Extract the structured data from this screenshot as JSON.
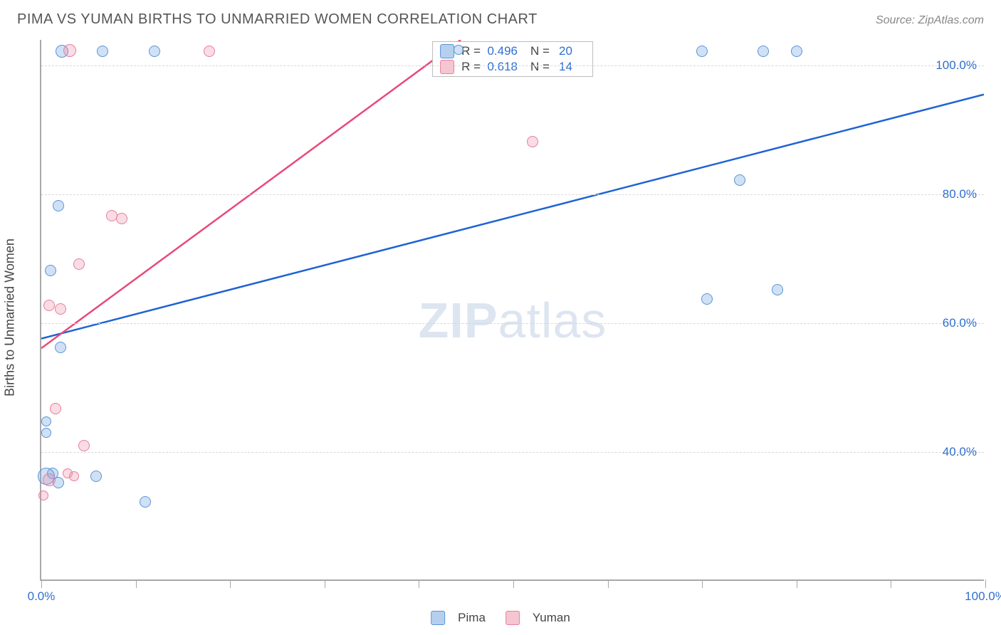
{
  "header": {
    "title": "PIMA VS YUMAN BIRTHS TO UNMARRIED WOMEN CORRELATION CHART",
    "source": "Source: ZipAtlas.com"
  },
  "watermark": {
    "bold": "ZIP",
    "light": "atlas"
  },
  "chart": {
    "type": "scatter",
    "background_color": "#ffffff",
    "grid_color": "#d8d8d8",
    "axis_color": "#a8a8a8",
    "tick_label_color": "#2f6fd0",
    "axis_label_color": "#444444",
    "y_label": "Births to Unmarried Women",
    "y_label_fontsize": 18,
    "xlim": [
      0,
      100
    ],
    "ylim": [
      20,
      104
    ],
    "x_ticks": [
      0,
      10,
      20,
      30,
      40,
      50,
      60,
      70,
      80,
      90,
      100
    ],
    "x_tick_labels": {
      "0": "0.0%",
      "100": "100.0%"
    },
    "y_gridlines": [
      40,
      60,
      80,
      100
    ],
    "y_tick_labels": {
      "40": "40.0%",
      "60": "60.0%",
      "80": "80.0%",
      "100": "100.0%"
    },
    "series": [
      {
        "name": "Pima",
        "fill_color": "rgba(120,170,225,0.35)",
        "stroke_color": "#5a94d6",
        "trend_color": "#1e63d4",
        "trend_width": 2.5,
        "marker_radius": 8,
        "r_value": "0.496",
        "n_value": "20",
        "trend_line": {
          "x1": 0,
          "y1": 57.5,
          "x2": 100,
          "y2": 95.5
        },
        "points": [
          {
            "x": 2.2,
            "y": 102.0,
            "r": 9
          },
          {
            "x": 6.5,
            "y": 102.0,
            "r": 8
          },
          {
            "x": 12.0,
            "y": 102.0,
            "r": 8
          },
          {
            "x": 70.0,
            "y": 102.0,
            "r": 8
          },
          {
            "x": 76.5,
            "y": 102.0,
            "r": 8
          },
          {
            "x": 80.0,
            "y": 102.0,
            "r": 8
          },
          {
            "x": 74.0,
            "y": 82.0,
            "r": 8
          },
          {
            "x": 1.8,
            "y": 78.0,
            "r": 8
          },
          {
            "x": 1.0,
            "y": 68.0,
            "r": 8
          },
          {
            "x": 70.5,
            "y": 63.5,
            "r": 8
          },
          {
            "x": 78.0,
            "y": 65.0,
            "r": 8
          },
          {
            "x": 2.0,
            "y": 56.0,
            "r": 8
          },
          {
            "x": 0.5,
            "y": 44.5,
            "r": 7
          },
          {
            "x": 0.5,
            "y": 42.8,
            "r": 7
          },
          {
            "x": 1.2,
            "y": 36.5,
            "r": 8
          },
          {
            "x": 0.5,
            "y": 36.0,
            "r": 12
          },
          {
            "x": 1.8,
            "y": 35.0,
            "r": 8
          },
          {
            "x": 5.8,
            "y": 36.0,
            "r": 8
          },
          {
            "x": 11.0,
            "y": 32.0,
            "r": 8
          },
          {
            "x": 44.2,
            "y": 102.2,
            "r": 7
          }
        ]
      },
      {
        "name": "Yuman",
        "fill_color": "rgba(235,140,165,0.30)",
        "stroke_color": "#e57f9f",
        "trend_color": "#e84a7a",
        "trend_width": 2.5,
        "marker_radius": 8,
        "r_value": "0.618",
        "n_value": "14",
        "trend_line": {
          "x1": 0,
          "y1": 56.0,
          "x2": 44.5,
          "y2": 104.0
        },
        "points": [
          {
            "x": 3.0,
            "y": 102.1,
            "r": 9
          },
          {
            "x": 17.8,
            "y": 102.0,
            "r": 8
          },
          {
            "x": 52.0,
            "y": 88.0,
            "r": 8
          },
          {
            "x": 7.5,
            "y": 76.5,
            "r": 8
          },
          {
            "x": 8.5,
            "y": 76.0,
            "r": 8
          },
          {
            "x": 4.0,
            "y": 69.0,
            "r": 8
          },
          {
            "x": 0.8,
            "y": 62.5,
            "r": 8
          },
          {
            "x": 2.0,
            "y": 62.0,
            "r": 8
          },
          {
            "x": 1.5,
            "y": 46.5,
            "r": 8
          },
          {
            "x": 4.5,
            "y": 40.8,
            "r": 8
          },
          {
            "x": 0.8,
            "y": 35.5,
            "r": 9
          },
          {
            "x": 2.8,
            "y": 36.5,
            "r": 7
          },
          {
            "x": 3.5,
            "y": 36.0,
            "r": 7
          },
          {
            "x": 0.2,
            "y": 33.0,
            "r": 7
          }
        ]
      }
    ],
    "stats_box": {
      "rows": [
        {
          "swatch_fill": "rgba(120,170,225,0.55)",
          "swatch_stroke": "#5a94d6",
          "r_label": "R =",
          "r_val": "0.496",
          "n_label": "N =",
          "n_val": "20"
        },
        {
          "swatch_fill": "rgba(235,140,165,0.5)",
          "swatch_stroke": "#e57f9f",
          "r_label": "R =",
          "r_val": "0.618",
          "n_label": "N =",
          "n_val": "14"
        }
      ]
    },
    "legend": [
      {
        "swatch_fill": "rgba(120,170,225,0.55)",
        "swatch_stroke": "#5a94d6",
        "label": "Pima"
      },
      {
        "swatch_fill": "rgba(235,140,165,0.5)",
        "swatch_stroke": "#e57f9f",
        "label": "Yuman"
      }
    ]
  }
}
